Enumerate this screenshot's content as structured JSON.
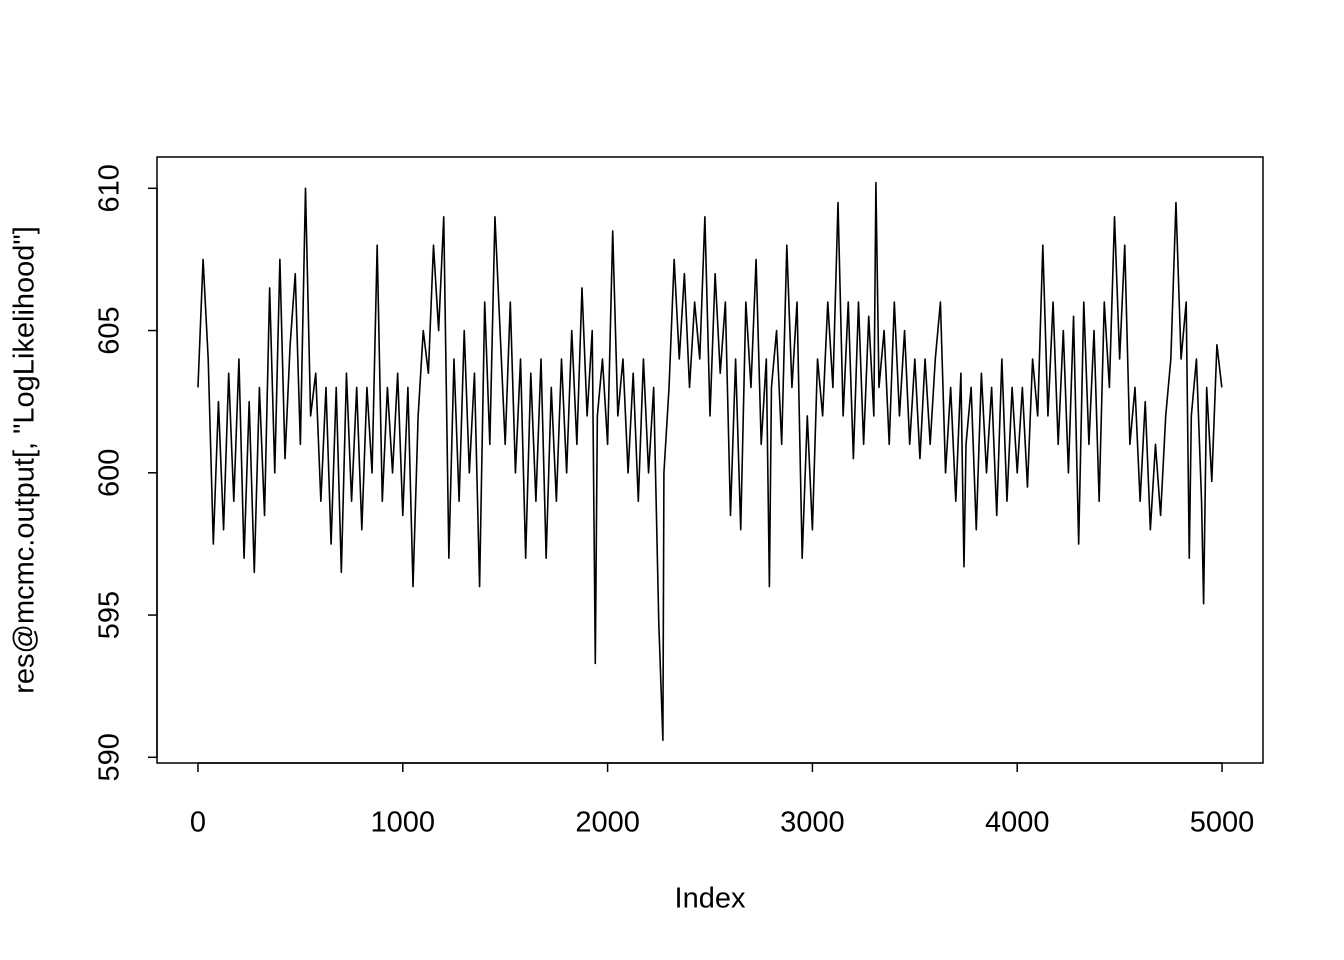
{
  "chart_data": {
    "type": "line",
    "x_label": "Index",
    "y_label": "res@mcmc.output[, \"LogLikelihood\"]",
    "xlim": [
      -200,
      5200
    ],
    "ylim": [
      589.8,
      611.1
    ],
    "xticks": [
      0,
      1000,
      2000,
      3000,
      4000,
      5000
    ],
    "yticks": [
      590,
      595,
      600,
      605,
      610
    ],
    "color": "#000000",
    "x": [
      0,
      25,
      50,
      75,
      100,
      125,
      150,
      175,
      200,
      225,
      250,
      275,
      300,
      325,
      350,
      375,
      400,
      425,
      450,
      475,
      500,
      525,
      550,
      575,
      600,
      625,
      650,
      675,
      700,
      725,
      750,
      775,
      800,
      825,
      850,
      875,
      900,
      925,
      950,
      975,
      1000,
      1025,
      1050,
      1075,
      1100,
      1125,
      1150,
      1175,
      1200,
      1225,
      1250,
      1275,
      1300,
      1325,
      1350,
      1375,
      1400,
      1425,
      1450,
      1475,
      1500,
      1525,
      1550,
      1575,
      1600,
      1625,
      1650,
      1675,
      1700,
      1725,
      1750,
      1775,
      1800,
      1825,
      1850,
      1875,
      1900,
      1925,
      1940,
      1950,
      1975,
      2000,
      2025,
      2050,
      2075,
      2100,
      2125,
      2150,
      2175,
      2200,
      2225,
      2250,
      2270,
      2275,
      2300,
      2325,
      2350,
      2375,
      2400,
      2425,
      2450,
      2475,
      2500,
      2525,
      2550,
      2575,
      2600,
      2625,
      2650,
      2675,
      2700,
      2725,
      2750,
      2775,
      2790,
      2800,
      2825,
      2850,
      2875,
      2900,
      2925,
      2950,
      2975,
      3000,
      3025,
      3050,
      3075,
      3100,
      3125,
      3150,
      3175,
      3200,
      3225,
      3250,
      3275,
      3300,
      3310,
      3325,
      3350,
      3375,
      3400,
      3425,
      3450,
      3475,
      3500,
      3525,
      3550,
      3575,
      3600,
      3625,
      3650,
      3675,
      3700,
      3725,
      3740,
      3750,
      3775,
      3800,
      3825,
      3850,
      3875,
      3900,
      3925,
      3950,
      3975,
      4000,
      4025,
      4050,
      4075,
      4100,
      4125,
      4150,
      4175,
      4200,
      4225,
      4250,
      4275,
      4300,
      4325,
      4350,
      4375,
      4400,
      4425,
      4450,
      4475,
      4500,
      4525,
      4550,
      4575,
      4600,
      4625,
      4650,
      4675,
      4700,
      4725,
      4750,
      4775,
      4800,
      4825,
      4840,
      4850,
      4875,
      4900,
      4910,
      4925,
      4950,
      4975,
      4999
    ],
    "values": [
      603,
      607.5,
      604,
      597.5,
      602.5,
      598,
      603.5,
      599,
      604,
      597,
      602.5,
      596.5,
      603,
      598.5,
      606.5,
      600,
      607.5,
      600.5,
      604.5,
      607,
      601,
      610,
      602,
      603.5,
      599,
      603,
      597.5,
      603,
      596.5,
      603.5,
      599,
      603,
      598,
      603,
      600,
      608,
      599,
      603,
      600,
      603.5,
      598.5,
      603,
      596,
      602,
      605,
      603.5,
      608,
      605,
      609,
      597,
      604,
      599,
      605,
      600,
      603.5,
      596,
      606,
      601,
      609,
      605,
      601,
      606,
      600,
      604,
      597,
      603.5,
      599,
      604,
      597,
      603,
      599,
      604,
      600,
      605,
      601,
      606.5,
      602,
      605,
      593.3,
      602,
      604,
      601,
      608.5,
      602,
      604,
      600,
      603.5,
      599,
      604,
      600,
      603,
      594.7,
      590.6,
      600,
      603,
      607.5,
      604,
      607,
      603,
      606,
      604,
      609,
      602,
      607,
      603.5,
      606,
      598.5,
      604,
      598,
      606,
      603,
      607.5,
      601,
      604,
      596,
      603,
      605,
      601,
      608,
      603,
      606,
      597,
      602,
      598,
      604,
      602,
      606,
      603,
      609.5,
      602,
      606,
      600.5,
      606,
      601,
      605.5,
      602,
      610.2,
      603,
      605,
      601,
      606,
      602,
      605,
      601,
      604,
      600.5,
      604,
      601,
      604,
      606,
      600,
      603,
      599,
      603.5,
      596.7,
      601,
      603,
      598,
      603.5,
      600,
      603,
      598.5,
      604,
      599,
      603,
      600,
      603,
      599.5,
      604,
      602,
      608,
      602,
      606,
      601,
      605,
      600,
      605.5,
      597.5,
      606,
      601,
      605,
      599,
      606,
      603,
      609,
      604,
      608,
      601,
      603,
      599,
      602.5,
      598,
      601,
      598.5,
      602,
      604,
      609.5,
      604,
      606,
      597,
      602,
      604,
      599,
      595.4,
      603,
      599.7,
      604.5,
      603
    ]
  }
}
